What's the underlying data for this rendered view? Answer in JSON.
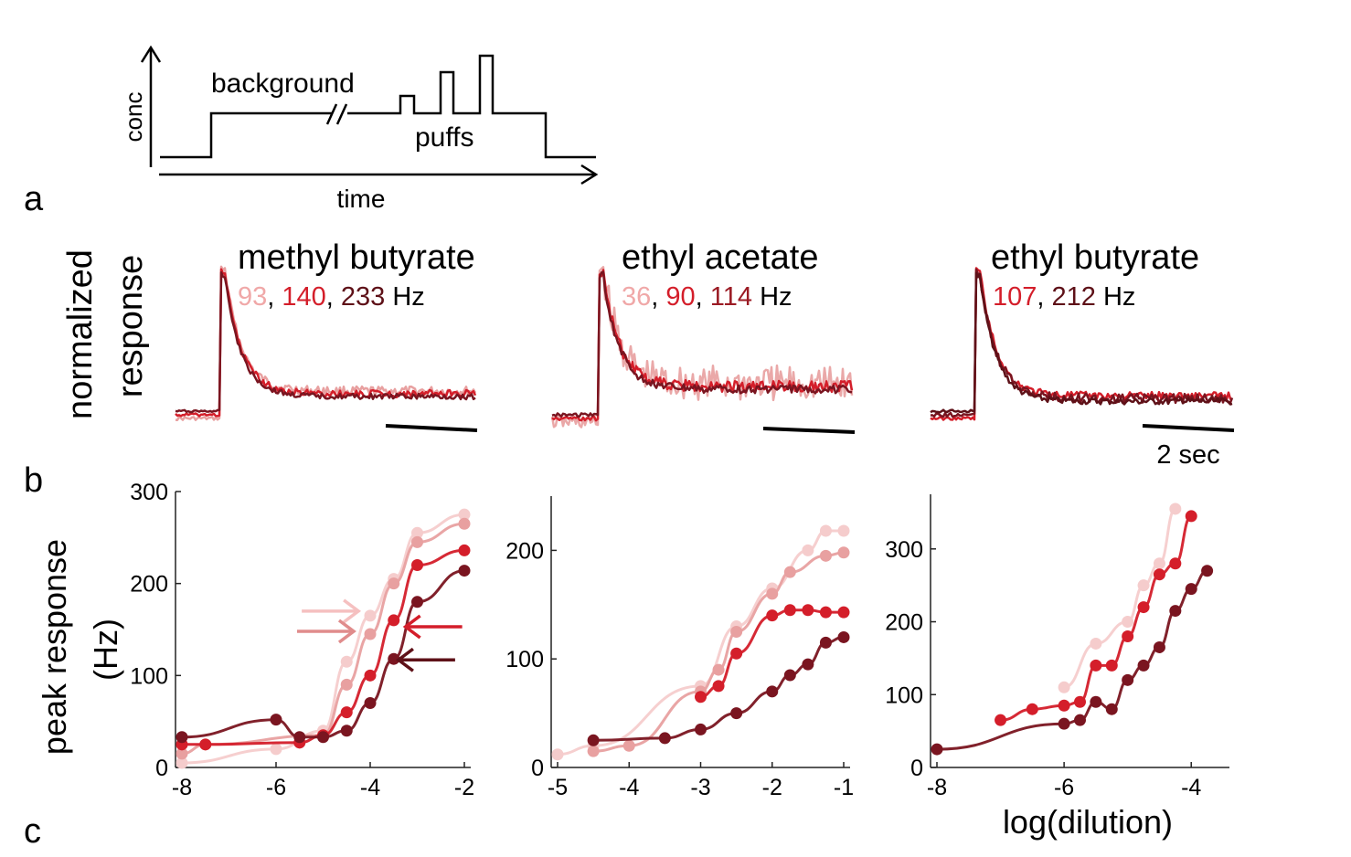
{
  "colors": {
    "c1": "#f0b8b8",
    "c2": "#e08c8c",
    "c3": "#d41e2a",
    "c4": "#9b1b24",
    "c5": "#5e1118",
    "axis": "#222222"
  },
  "panel_labels": {
    "a": "a",
    "b": "b",
    "c": "c"
  },
  "schematic": {
    "ylabel": "conc",
    "xlabel": "time",
    "background": "background",
    "puffs": "puffs"
  },
  "traces": {
    "ylabel_line1": "normalized",
    "ylabel_line2": "response",
    "scalebar_label": "2 sec",
    "panels": [
      {
        "title": "methyl butyrate",
        "rates": [
          {
            "text": "93",
            "color": "#f0a8a8"
          },
          {
            "text": "140",
            "color": "#d41e2a"
          },
          {
            "text": "233",
            "color": "#5e1118"
          }
        ],
        "unit": "Hz"
      },
      {
        "title": "ethyl acetate",
        "rates": [
          {
            "text": "36",
            "color": "#f0a8a8"
          },
          {
            "text": "90",
            "color": "#d41e2a"
          },
          {
            "text": "114",
            "color": "#9b1b24"
          }
        ],
        "unit": "Hz"
      },
      {
        "title": "ethyl butyrate",
        "rates": [
          {
            "text": "107",
            "color": "#d41e2a"
          },
          {
            "text": "212",
            "color": "#5e1118"
          }
        ],
        "unit": "Hz"
      }
    ]
  },
  "chart_data": [
    {
      "type": "scatter",
      "ylabel_line1": "peak response",
      "ylabel_line2": "(Hz)",
      "xlim": [
        -8,
        -2
      ],
      "ylim": [
        0,
        300
      ],
      "xticks": [
        "-8",
        "-6",
        "-4",
        "-2"
      ],
      "xtick_values": [
        -8,
        -6,
        -4,
        -2
      ],
      "yticks": [
        "0",
        "100",
        "200",
        "300"
      ],
      "ytick_values": [
        0,
        100,
        200,
        300
      ],
      "series": [
        {
          "color": "#f5cccc",
          "x": [
            -8,
            -6,
            -5,
            -4.5,
            -4,
            -3.5,
            -3,
            -2
          ],
          "y": [
            5,
            20,
            40,
            115,
            165,
            205,
            255,
            275
          ]
        },
        {
          "color": "#e8a0a0",
          "x": [
            -8,
            -7.5,
            -5,
            -4.5,
            -4,
            -3.5,
            -3,
            -2
          ],
          "y": [
            15,
            25,
            35,
            90,
            145,
            200,
            245,
            265
          ]
        },
        {
          "color": "#d41e2a",
          "x": [
            -8,
            -7.5,
            -5.5,
            -5,
            -4.5,
            -4,
            -3.5,
            -3,
            -2
          ],
          "y": [
            25,
            25,
            27,
            35,
            60,
            100,
            160,
            220,
            236
          ]
        },
        {
          "color": "#7a1520",
          "x": [
            -8,
            -6,
            -5.5,
            -5,
            -4.5,
            -4,
            -3.5,
            -3,
            -2
          ],
          "y": [
            33,
            52,
            33,
            33,
            40,
            70,
            118,
            180,
            214
          ]
        }
      ],
      "arrows": [
        {
          "x": -4.25,
          "y": 170,
          "direction": "right",
          "color": "#f5c0c0"
        },
        {
          "x": -4.35,
          "y": 148,
          "direction": "right",
          "color": "#e08c8c"
        },
        {
          "x": -3.25,
          "y": 153,
          "direction": "left",
          "color": "#d41e2a"
        },
        {
          "x": -3.4,
          "y": 117,
          "direction": "left",
          "color": "#5e1118"
        }
      ]
    },
    {
      "type": "scatter",
      "xlim": [
        -5,
        -1
      ],
      "ylim": [
        0,
        250
      ],
      "xticks": [
        "-5",
        "-4",
        "-3",
        "-2",
        "-1"
      ],
      "xtick_values": [
        -5,
        -4,
        -3,
        -2,
        -1
      ],
      "yticks": [
        "0",
        "100",
        "200"
      ],
      "ytick_values": [
        0,
        100,
        200
      ],
      "series": [
        {
          "color": "#f5cccc",
          "x": [
            -5,
            -4.5,
            -3,
            -2.5,
            -2,
            -1.5,
            -1.25,
            -1
          ],
          "y": [
            12,
            20,
            75,
            130,
            165,
            200,
            218,
            218
          ]
        },
        {
          "color": "#e8a0a0",
          "x": [
            -4.5,
            -4,
            -3,
            -2.75,
            -2.5,
            -2,
            -1.75,
            -1.25,
            -1
          ],
          "y": [
            15,
            20,
            70,
            90,
            125,
            160,
            180,
            195,
            198
          ]
        },
        {
          "color": "#d41e2a",
          "x": [
            -3,
            -2.75,
            -2.5,
            -2,
            -1.75,
            -1.5,
            -1.25,
            -1
          ],
          "y": [
            65,
            75,
            105,
            140,
            145,
            145,
            143,
            143
          ]
        },
        {
          "color": "#7a1520",
          "x": [
            -4.5,
            -3.5,
            -3,
            -2.5,
            -2,
            -1.75,
            -1.5,
            -1.25,
            -1
          ],
          "y": [
            25,
            27,
            35,
            50,
            70,
            85,
            95,
            115,
            120
          ]
        }
      ]
    },
    {
      "type": "scatter",
      "xlabel": "log(dilution)",
      "xlim": [
        -8,
        -3.5
      ],
      "ylim": [
        0,
        375
      ],
      "xticks": [
        "-8",
        "-6",
        "-4"
      ],
      "xtick_values": [
        -8,
        -6,
        -4
      ],
      "yticks": [
        "0",
        "100",
        "200",
        "300"
      ],
      "ytick_values": [
        0,
        100,
        200,
        300
      ],
      "series": [
        {
          "color": "#f5cccc",
          "x": [
            -6,
            -5.5,
            -5,
            -4.75,
            -4.5,
            -4.25
          ],
          "y": [
            110,
            170,
            200,
            250,
            280,
            355
          ]
        },
        {
          "color": "#d41e2a",
          "x": [
            -7,
            -6.5,
            -6,
            -5.75,
            -5.5,
            -5.25,
            -5,
            -4.75,
            -4.5,
            -4.25,
            -4
          ],
          "y": [
            65,
            80,
            85,
            90,
            140,
            140,
            180,
            220,
            265,
            280,
            345
          ]
        },
        {
          "color": "#7a1520",
          "x": [
            -8,
            -6,
            -5.75,
            -5.5,
            -5.25,
            -5,
            -4.75,
            -4.5,
            -4.25,
            -4,
            -3.75
          ],
          "y": [
            25,
            60,
            65,
            90,
            80,
            120,
            140,
            165,
            215,
            245,
            270
          ]
        }
      ]
    }
  ]
}
